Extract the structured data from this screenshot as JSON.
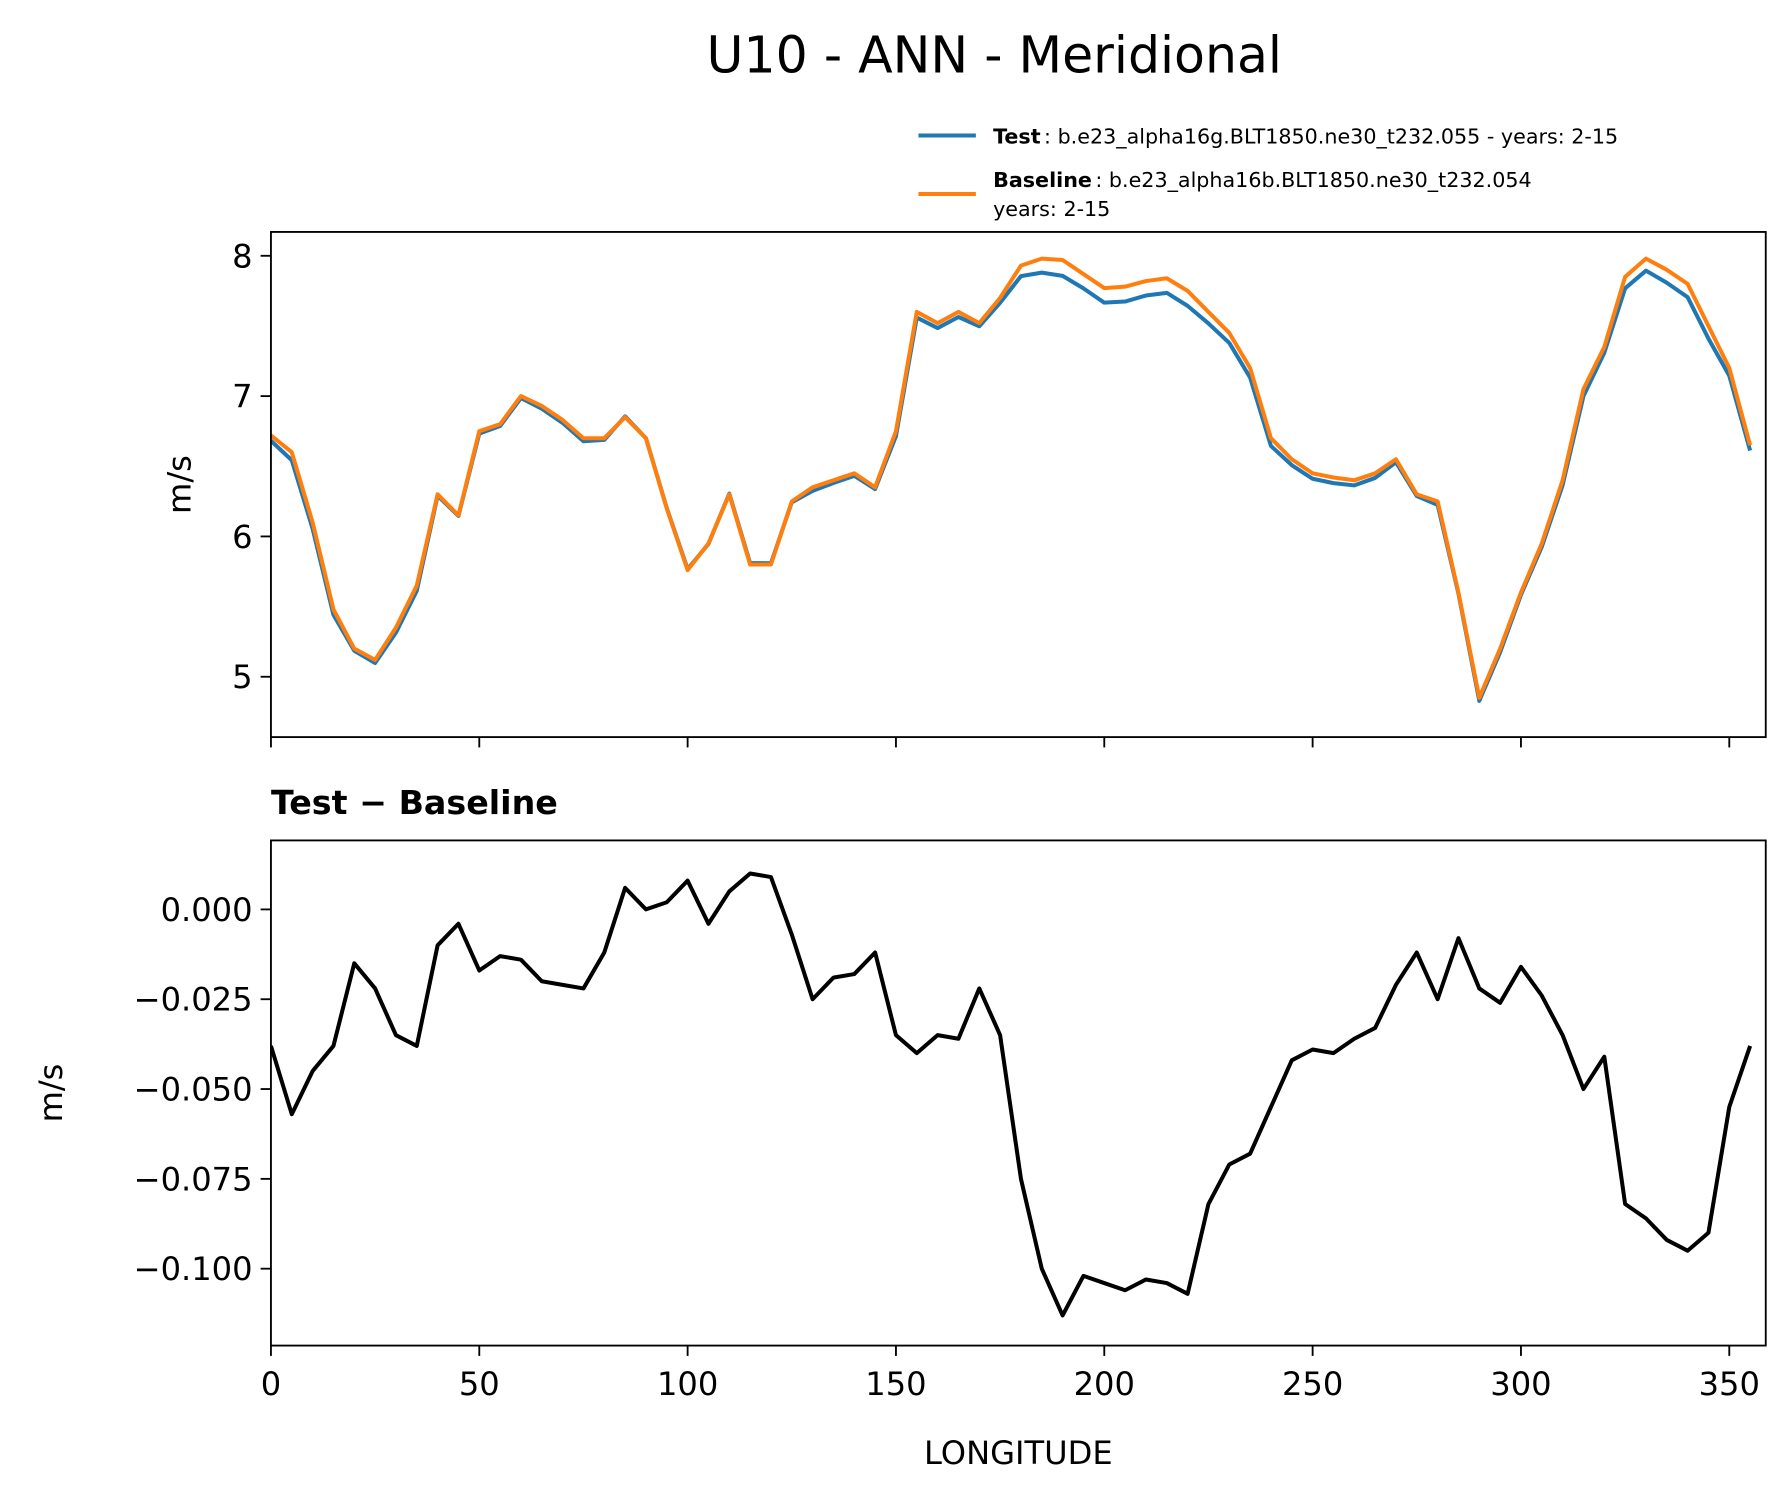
{
  "chart_data": [
    {
      "type": "line",
      "title": "U10 - ANN - Meridional",
      "ylabel": "m/s",
      "x": [
        0,
        5,
        10,
        15,
        20,
        25,
        30,
        35,
        40,
        45,
        50,
        55,
        60,
        65,
        70,
        75,
        80,
        85,
        90,
        95,
        100,
        105,
        110,
        115,
        120,
        125,
        130,
        135,
        140,
        145,
        150,
        155,
        160,
        165,
        170,
        175,
        180,
        185,
        190,
        195,
        200,
        205,
        210,
        215,
        220,
        225,
        230,
        235,
        240,
        245,
        250,
        255,
        260,
        265,
        270,
        275,
        280,
        285,
        290,
        295,
        300,
        305,
        310,
        315,
        320,
        325,
        330,
        335,
        340,
        345,
        350,
        355
      ],
      "series": [
        {
          "name": "Test",
          "label": [
            ": b.e23_alpha16g.BLT1850.ne30_t232.055 - years: 2-15"
          ],
          "color": "#1f77b4",
          "values": [
            6.682,
            6.543,
            6.055,
            5.442,
            5.185,
            5.098,
            5.315,
            5.612,
            6.29,
            6.146,
            6.733,
            6.787,
            6.986,
            6.91,
            6.809,
            6.678,
            6.688,
            6.856,
            6.7,
            6.202,
            5.768,
            5.946,
            6.305,
            5.81,
            5.809,
            6.243,
            6.325,
            6.381,
            6.432,
            6.338,
            6.715,
            7.56,
            7.485,
            7.564,
            7.498,
            7.665,
            7.855,
            7.88,
            7.857,
            7.768,
            7.666,
            7.674,
            7.717,
            7.736,
            7.643,
            7.518,
            7.379,
            7.132,
            6.645,
            6.508,
            6.411,
            6.38,
            6.364,
            6.417,
            6.529,
            6.288,
            6.225,
            5.592,
            4.828,
            5.174,
            5.584,
            5.926,
            6.365,
            7.0,
            7.309,
            7.768,
            7.894,
            7.808,
            7.705,
            7.41,
            7.145,
            6.612
          ]
        },
        {
          "name": "Baseline",
          "label": [
            ": b.e23_alpha16b.BLT1850.ne30_t232.054",
            "years: 2-15"
          ],
          "color": "#ff7f0e",
          "values": [
            6.72,
            6.6,
            6.1,
            5.48,
            5.2,
            5.12,
            5.35,
            5.65,
            6.3,
            6.15,
            6.75,
            6.8,
            7.0,
            6.93,
            6.83,
            6.7,
            6.7,
            6.85,
            6.7,
            6.2,
            5.76,
            5.95,
            6.3,
            5.8,
            5.8,
            6.25,
            6.35,
            6.4,
            6.45,
            6.35,
            6.75,
            7.6,
            7.52,
            7.6,
            7.52,
            7.7,
            7.93,
            7.98,
            7.97,
            7.87,
            7.77,
            7.78,
            7.82,
            7.84,
            7.75,
            7.6,
            7.45,
            7.2,
            6.7,
            6.55,
            6.45,
            6.42,
            6.4,
            6.45,
            6.55,
            6.3,
            6.25,
            5.6,
            4.85,
            5.2,
            5.6,
            5.95,
            6.4,
            7.05,
            7.35,
            7.85,
            7.98,
            7.9,
            7.8,
            7.5,
            7.2,
            6.65
          ]
        }
      ],
      "xlim": [
        0,
        358.75
      ],
      "xticks": [
        0,
        50,
        100,
        150,
        200,
        250,
        300,
        350
      ],
      "show_xtick_labels": false,
      "ylim": [
        4.57,
        8.17
      ],
      "yticks": [
        5,
        6,
        7,
        8
      ],
      "legend": "upper right"
    },
    {
      "type": "line",
      "title": "Test − Baseline",
      "ylabel": "m/s",
      "xlabel": "LONGITUDE",
      "x": [
        0,
        5,
        10,
        15,
        20,
        25,
        30,
        35,
        40,
        45,
        50,
        55,
        60,
        65,
        70,
        75,
        80,
        85,
        90,
        95,
        100,
        105,
        110,
        115,
        120,
        125,
        130,
        135,
        140,
        145,
        150,
        155,
        160,
        165,
        170,
        175,
        180,
        185,
        190,
        195,
        200,
        205,
        210,
        215,
        220,
        225,
        230,
        235,
        240,
        245,
        250,
        255,
        260,
        265,
        270,
        275,
        280,
        285,
        290,
        295,
        300,
        305,
        310,
        315,
        320,
        325,
        330,
        335,
        340,
        345,
        350,
        355
      ],
      "series": [
        {
          "color": "#000000",
          "values": [
            -0.038,
            -0.057,
            -0.045,
            -0.038,
            -0.015,
            -0.022,
            -0.035,
            -0.038,
            -0.01,
            -0.004,
            -0.017,
            -0.013,
            -0.014,
            -0.02,
            -0.021,
            -0.022,
            -0.012,
            0.006,
            0.0,
            0.002,
            0.008,
            -0.004,
            0.005,
            0.01,
            0.009,
            -0.007,
            -0.025,
            -0.019,
            -0.018,
            -0.012,
            -0.035,
            -0.04,
            -0.035,
            -0.036,
            -0.022,
            -0.035,
            -0.075,
            -0.1,
            -0.113,
            -0.102,
            -0.104,
            -0.106,
            -0.103,
            -0.104,
            -0.107,
            -0.082,
            -0.071,
            -0.068,
            -0.055,
            -0.042,
            -0.039,
            -0.04,
            -0.036,
            -0.033,
            -0.021,
            -0.012,
            -0.025,
            -0.008,
            -0.022,
            -0.026,
            -0.016,
            -0.024,
            -0.035,
            -0.05,
            -0.041,
            -0.082,
            -0.086,
            -0.092,
            -0.095,
            -0.09,
            -0.055,
            -0.038
          ]
        }
      ],
      "xlim": [
        0,
        358.75
      ],
      "xticks": [
        0,
        50,
        100,
        150,
        200,
        250,
        300,
        350
      ],
      "show_xtick_labels": true,
      "ylim": [
        -0.1214,
        0.0192
      ],
      "yticks": [
        {
          "value": -0.1,
          "label": "−0.100"
        },
        {
          "value": -0.075,
          "label": "−0.075"
        },
        {
          "value": -0.05,
          "label": "−0.050"
        },
        {
          "value": -0.025,
          "label": "−0.025"
        },
        {
          "value": 0,
          "label": "0.000"
        }
      ]
    }
  ]
}
